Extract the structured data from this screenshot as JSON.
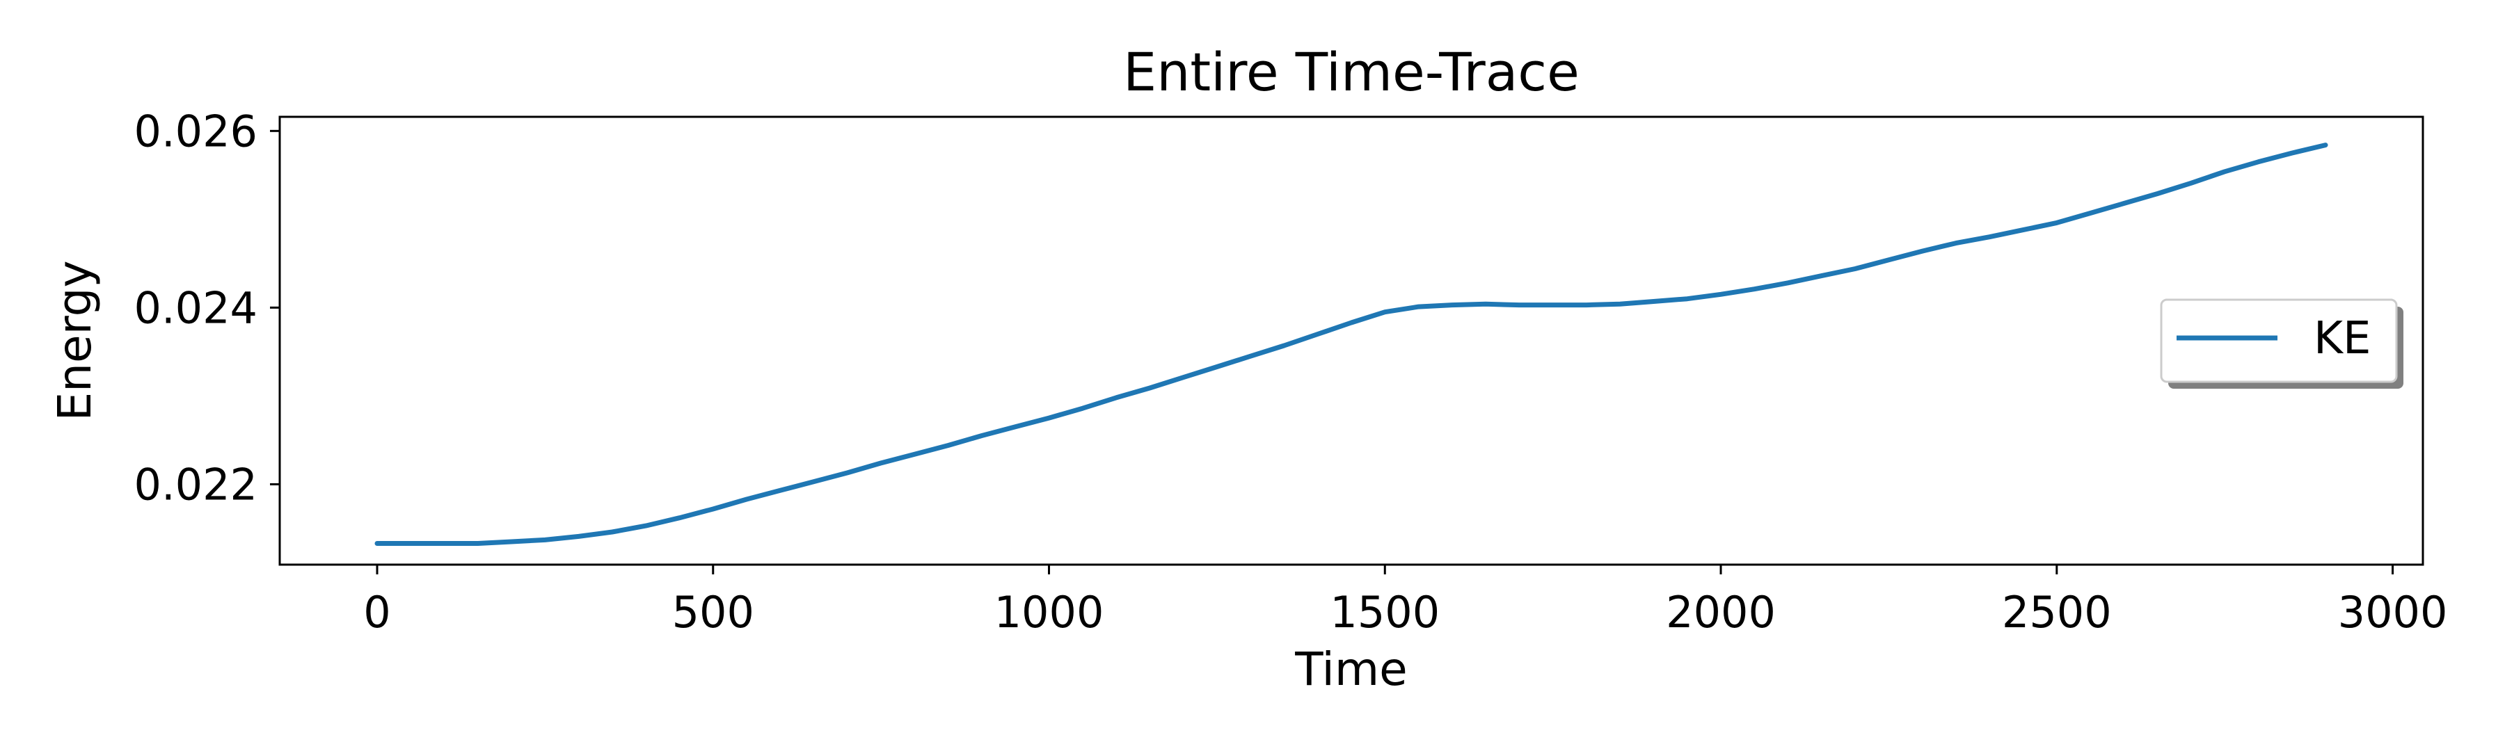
{
  "chart_data": {
    "type": "line",
    "title": "Entire Time-Trace",
    "xlabel": "Time",
    "ylabel": "Energy",
    "xlim": [
      -145,
      3045
    ],
    "ylim": [
      0.02109,
      0.02616
    ],
    "xticks": [
      0,
      500,
      1000,
      1500,
      2000,
      2500,
      3000
    ],
    "xtick_labels": [
      "0",
      "500",
      "1000",
      "1500",
      "2000",
      "2500",
      "3000"
    ],
    "yticks": [
      0.022,
      0.024,
      0.026
    ],
    "ytick_labels": [
      "0.022",
      "0.024",
      "0.026"
    ],
    "grid": false,
    "legend": {
      "position": "right",
      "entries": [
        "KE"
      ]
    },
    "series": [
      {
        "name": "KE",
        "color": "#1f77b4",
        "x": [
          0,
          50,
          100,
          150,
          200,
          250,
          300,
          350,
          400,
          450,
          500,
          550,
          600,
          650,
          700,
          750,
          800,
          850,
          900,
          950,
          1000,
          1050,
          1100,
          1150,
          1200,
          1250,
          1300,
          1350,
          1400,
          1450,
          1500,
          1550,
          1600,
          1650,
          1700,
          1750,
          1800,
          1850,
          1900,
          1950,
          2000,
          2050,
          2100,
          2150,
          2200,
          2250,
          2300,
          2350,
          2400,
          2450,
          2500,
          2550,
          2600,
          2650,
          2700,
          2750,
          2800,
          2850,
          2900
        ],
        "y": [
          0.02133,
          0.02133,
          0.02133,
          0.02133,
          0.02135,
          0.02137,
          0.02141,
          0.02146,
          0.02153,
          0.02162,
          0.02172,
          0.02183,
          0.02193,
          0.02203,
          0.02213,
          0.02224,
          0.02234,
          0.02244,
          0.02255,
          0.02265,
          0.02275,
          0.02286,
          0.02298,
          0.02309,
          0.02321,
          0.02333,
          0.02345,
          0.02357,
          0.0237,
          0.02383,
          0.02395,
          0.02401,
          0.02403,
          0.02404,
          0.02403,
          0.02403,
          0.02403,
          0.02404,
          0.02407,
          0.0241,
          0.02415,
          0.02421,
          0.02428,
          0.02436,
          0.02444,
          0.02454,
          0.02464,
          0.02473,
          0.0248,
          0.02488,
          0.02496,
          0.02507,
          0.02518,
          0.02529,
          0.02541,
          0.02554,
          0.02565,
          0.02575,
          0.02584
        ]
      }
    ]
  }
}
